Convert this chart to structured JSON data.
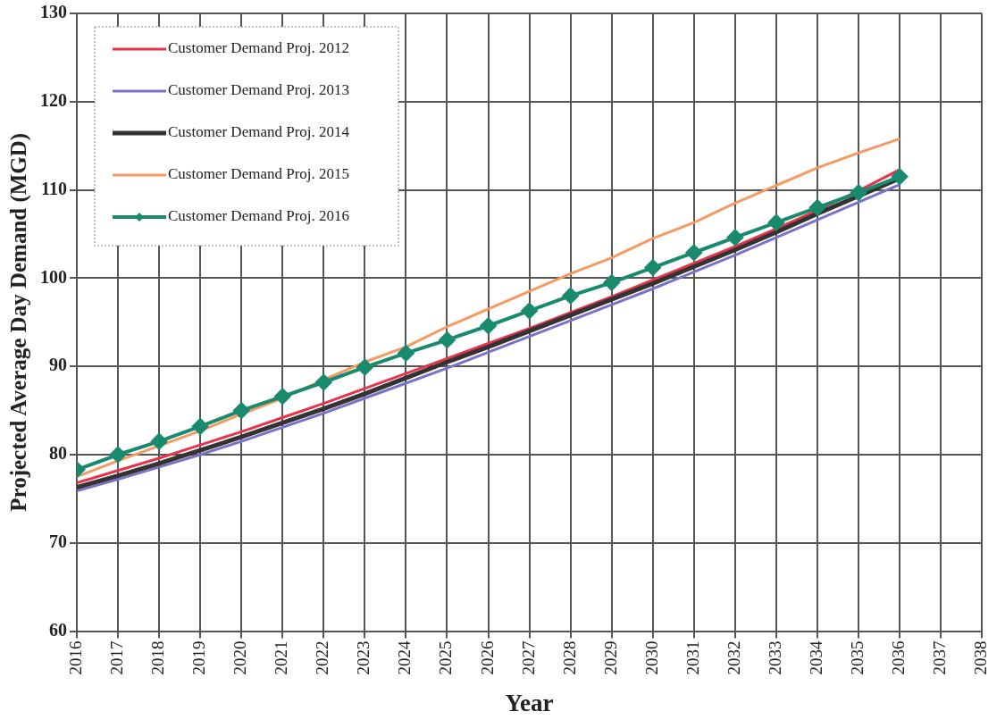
{
  "chart_data": {
    "type": "line",
    "xlabel": "Year",
    "ylabel": "Projected Average Day Demand (MGD)",
    "x": [
      2016,
      2017,
      2018,
      2019,
      2020,
      2021,
      2022,
      2023,
      2024,
      2025,
      2026,
      2027,
      2028,
      2029,
      2030,
      2031,
      2032,
      2033,
      2034,
      2035,
      2036
    ],
    "series": [
      {
        "name": "Customer Demand Proj. 2012",
        "color": "#e8334a",
        "values": [
          76.8,
          78.2,
          79.6,
          81.1,
          82.6,
          84.2,
          85.8,
          87.5,
          89.2,
          90.9,
          92.6,
          94.3,
          96.1,
          97.9,
          99.8,
          101.7,
          103.6,
          105.6,
          107.7,
          109.9,
          112.3
        ]
      },
      {
        "name": "Customer Demand Proj. 2013",
        "color": "#7b72c8",
        "values": [
          75.9,
          77.2,
          78.6,
          80.0,
          81.5,
          83.1,
          84.7,
          86.4,
          88.1,
          89.8,
          91.6,
          93.4,
          95.2,
          97.0,
          98.8,
          100.7,
          102.6,
          104.6,
          106.6,
          108.6,
          110.6
        ]
      },
      {
        "name": "Customer Demand Proj. 2014",
        "color": "#333333",
        "values": [
          76.3,
          77.6,
          79.0,
          80.5,
          82.0,
          83.6,
          85.2,
          86.9,
          88.7,
          90.5,
          92.2,
          94.0,
          95.8,
          97.6,
          99.4,
          101.3,
          103.2,
          105.2,
          107.3,
          109.3,
          111.3
        ]
      },
      {
        "name": "Customer Demand Proj. 2015",
        "color": "#f59a62",
        "values": [
          77.5,
          79.3,
          81.0,
          82.7,
          84.6,
          86.4,
          88.5,
          90.5,
          92.2,
          94.5,
          96.5,
          98.5,
          100.5,
          102.3,
          104.5,
          106.3,
          108.5,
          110.5,
          112.5,
          114.2,
          115.8
        ]
      },
      {
        "name": "Customer Demand Proj. 2016",
        "color": "#1a8a6e",
        "marker": "diamond",
        "values": [
          78.3,
          80.0,
          81.5,
          83.2,
          85.0,
          86.6,
          88.2,
          89.9,
          91.5,
          93.0,
          94.6,
          96.3,
          98.0,
          99.5,
          101.2,
          102.9,
          104.6,
          106.3,
          108.0,
          109.7,
          111.5
        ]
      }
    ],
    "xlim": [
      2016,
      2038
    ],
    "xticks": [
      2016,
      2017,
      2018,
      2019,
      2020,
      2021,
      2022,
      2023,
      2024,
      2025,
      2026,
      2027,
      2028,
      2029,
      2030,
      2031,
      2032,
      2033,
      2034,
      2035,
      2036,
      2037,
      2038
    ],
    "ylim": [
      60,
      130
    ],
    "yticks": [
      60,
      70,
      80,
      90,
      100,
      110,
      120,
      130
    ],
    "grid": true,
    "legend": "top left"
  }
}
